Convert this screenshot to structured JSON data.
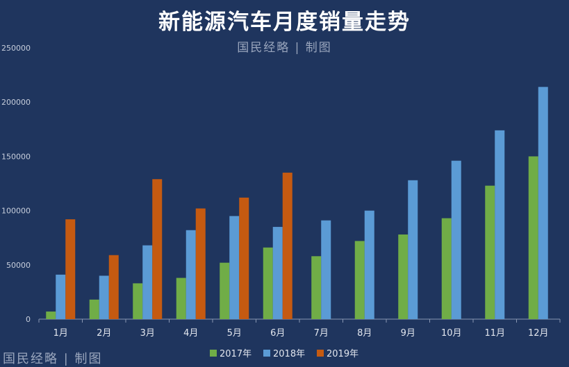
{
  "chart_data": {
    "type": "bar",
    "title": "新能源汽车月度销量走势",
    "subtitle": "国民经略 | 制图",
    "watermark": "国民经略 | 制图",
    "categories": [
      "1月",
      "2月",
      "3月",
      "4月",
      "5月",
      "6月",
      "7月",
      "8月",
      "9月",
      "10月",
      "11月",
      "12月"
    ],
    "series": [
      {
        "name": "2017年",
        "color": "#70ad47",
        "values": [
          7000,
          18000,
          33000,
          38000,
          52000,
          66000,
          58000,
          72000,
          78000,
          93000,
          123000,
          150000
        ]
      },
      {
        "name": "2018年",
        "color": "#5b9bd5",
        "values": [
          41000,
          40000,
          68000,
          82000,
          95000,
          85000,
          91000,
          100000,
          128000,
          146000,
          174000,
          214000
        ]
      },
      {
        "name": "2019年",
        "color": "#c55a11",
        "values": [
          92000,
          59000,
          129000,
          102000,
          112000,
          135000,
          null,
          null,
          null,
          null,
          null,
          null
        ]
      }
    ],
    "yticks": [
      0,
      50000,
      100000,
      150000,
      200000,
      250000
    ],
    "ylim": [
      0,
      250000
    ],
    "xlabel": "",
    "ylabel": "",
    "grid": false,
    "legend_position": "bottom-center"
  }
}
